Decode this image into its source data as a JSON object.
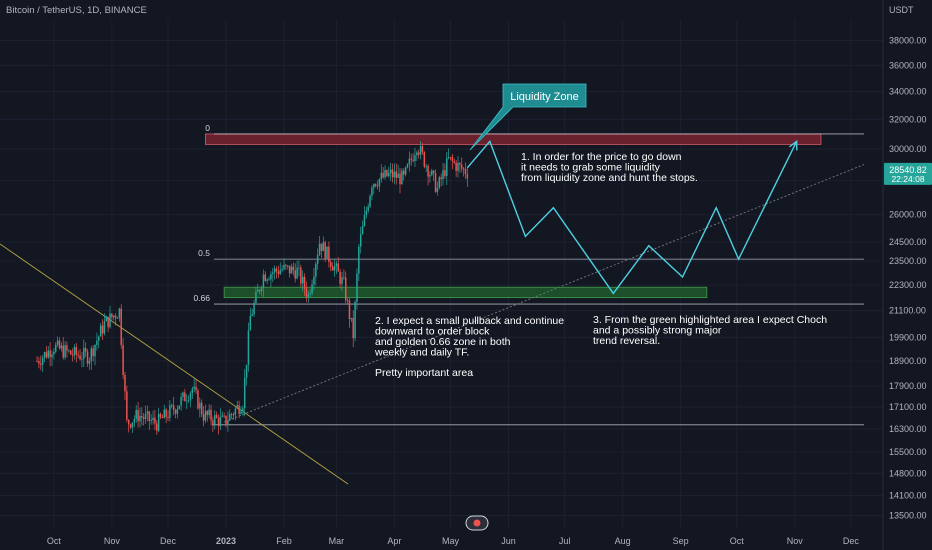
{
  "header": {
    "symbol_title": "Bitcoin / TetherUS, 1D, BINANCE",
    "currency": "USDT"
  },
  "price_badge": {
    "price": "28540.82",
    "countdown": "22:24:08"
  },
  "watermark_icon": "tradingview-logo-icon",
  "colors": {
    "background": "#131722",
    "up": "#26a69a",
    "down": "#ef5350",
    "annotation_line": "#4dd0e1",
    "callout_bg": "#1f8c92",
    "zone_red": "#7a2330",
    "zone_green": "#1e5a2b",
    "trendline": "#b5a642",
    "level_line": "#d1d4dc",
    "axis_text": "#b2b5be"
  },
  "chart_data": {
    "type": "candlestick",
    "symbol": "Bitcoin / TetherUS, 1D, BINANCE",
    "y_axis": {
      "unit": "USDT",
      "scale": "log",
      "range": [
        13300,
        43000
      ],
      "tick_labels": [
        "38000.00",
        "36000.00",
        "34000.00",
        "32000.00",
        "30000.00",
        "28000.00",
        "26000.00",
        "24500.00",
        "23500.00",
        "22300.00",
        "21100.00",
        "19900.00",
        "18900.00",
        "17900.00",
        "17100.00",
        "16300.00",
        "15500.00",
        "14800.00",
        "14100.00",
        "13500.00"
      ]
    },
    "x_axis": {
      "tick_labels": [
        "Oct",
        "Nov",
        "Dec",
        "2023",
        "Feb",
        "Mar",
        "Apr",
        "May",
        "Jun",
        "Jul",
        "Aug",
        "Sep",
        "Oct",
        "Nov",
        "Dec"
      ],
      "range": [
        "2022-09-22",
        "2023-12-31"
      ]
    },
    "candles_approx_path": [
      [
        "2022-09-22",
        18900
      ],
      [
        "2022-10-01",
        19500
      ],
      [
        "2022-10-10",
        19200
      ],
      [
        "2022-10-20",
        19100
      ],
      [
        "2022-10-28",
        20500
      ],
      [
        "2022-11-05",
        21100
      ],
      [
        "2022-11-09",
        16500
      ],
      [
        "2022-11-15",
        16800
      ],
      [
        "2022-11-25",
        16500
      ],
      [
        "2022-12-05",
        17100
      ],
      [
        "2022-12-14",
        17800
      ],
      [
        "2022-12-20",
        16800
      ],
      [
        "2022-12-31",
        16550
      ],
      [
        "2023-01-10",
        17300
      ],
      [
        "2023-01-14",
        20800
      ],
      [
        "2023-01-21",
        22800
      ],
      [
        "2023-01-31",
        23100
      ],
      [
        "2023-02-08",
        23000
      ],
      [
        "2023-02-14",
        21800
      ],
      [
        "2023-02-20",
        24500
      ],
      [
        "2023-02-28",
        23200
      ],
      [
        "2023-03-05",
        22300
      ],
      [
        "2023-03-10",
        20000
      ],
      [
        "2023-03-13",
        24200
      ],
      [
        "2023-03-20",
        27900
      ],
      [
        "2023-03-30",
        28400
      ],
      [
        "2023-04-06",
        28100
      ],
      [
        "2023-04-13",
        30300
      ],
      [
        "2023-04-20",
        28500
      ],
      [
        "2023-04-24",
        27500
      ],
      [
        "2023-04-30",
        29300
      ],
      [
        "2023-05-06",
        28800
      ],
      [
        "2023-05-10",
        28540
      ]
    ],
    "fib_levels": [
      {
        "label": "0",
        "price": 31000
      },
      {
        "label": "0.5",
        "price": 23600
      },
      {
        "label": "0.66",
        "price": 21400
      }
    ],
    "support_line_price": 16450,
    "zones": [
      {
        "name": "Liquidity Zone",
        "price_low": 30300,
        "price_high": 31000,
        "from": "2022-12-21",
        "to": "2023-11-15"
      },
      {
        "name": "order block",
        "price_low": 21700,
        "price_high": 22200,
        "from": "2022-12-31",
        "to": "2023-09-15"
      }
    ],
    "projection_path": [
      [
        "2023-05-10",
        28800
      ],
      [
        "2023-05-22",
        30500
      ],
      [
        "2023-06-10",
        24800
      ],
      [
        "2023-06-25",
        26400
      ],
      [
        "2023-07-27",
        21900
      ],
      [
        "2023-08-15",
        24300
      ],
      [
        "2023-09-02",
        22700
      ],
      [
        "2023-09-20",
        26400
      ],
      [
        "2023-10-02",
        23600
      ],
      [
        "2023-11-02",
        30500
      ]
    ],
    "annotations": [
      {
        "id": "callout",
        "text": "Liquidity Zone"
      },
      {
        "id": "note1",
        "lines": [
          "1. In order for the price to go down",
          "it needs to grab some liquidity",
          "from liquidity zone and hunt the stops."
        ]
      },
      {
        "id": "note2",
        "lines": [
          "2. I expect a small pullback and continue",
          "downward to order block",
          "and golden 0.66 zone in both",
          "weekly and daily TF."
        ]
      },
      {
        "id": "note2b",
        "lines": [
          "Pretty important area"
        ]
      },
      {
        "id": "note3",
        "lines": [
          "3. From the green highlighted area I expect Choch",
          "and a possibly strong major",
          "trend reversal."
        ]
      }
    ]
  }
}
